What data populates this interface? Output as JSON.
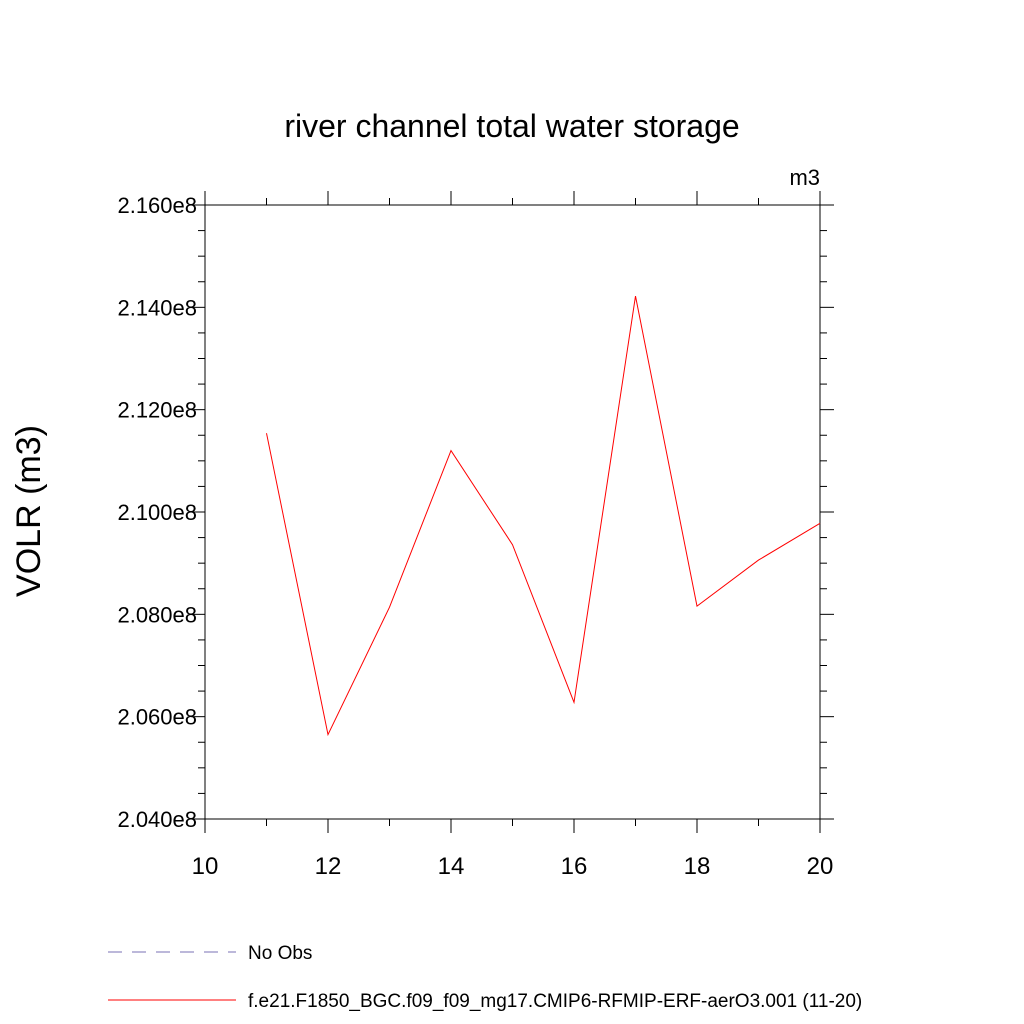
{
  "chart_data": {
    "type": "line",
    "title": "river channel total water storage",
    "units_label": "m3",
    "ylabel": "VOLR  (m3)",
    "xlabel": "",
    "xlim": [
      10,
      20
    ],
    "ylim": [
      204000000,
      216000000
    ],
    "x_ticks": [
      10,
      12,
      14,
      16,
      18,
      20
    ],
    "x_tick_labels": [
      "10",
      "12",
      "14",
      "16",
      "18",
      "20"
    ],
    "y_ticks": [
      204000000,
      206000000,
      208000000,
      210000000,
      212000000,
      214000000,
      216000000
    ],
    "y_tick_labels": [
      "2.040e8",
      "2.060e8",
      "2.080e8",
      "2.100e8",
      "2.120e8",
      "2.140e8",
      "2.160e8"
    ],
    "series": [
      {
        "name": "f.e21.F1850_BGC.f09_f09_mg17.CMIP6-RFMIP-ERF-aerO3.001 (11-20)",
        "color": "#ff0000",
        "dash": "solid",
        "x": [
          11,
          12,
          13,
          14,
          15,
          16,
          17,
          18,
          19,
          20
        ],
        "y": [
          211540000,
          205650000,
          208140000,
          211200000,
          209360000,
          206280000,
          214220000,
          208160000,
          209060000,
          209780000
        ]
      }
    ],
    "legend": [
      {
        "label": "No Obs",
        "color": "#7a70b4",
        "dash": "dashed"
      },
      {
        "label": "f.e21.F1850_BGC.f09_f09_mg17.CMIP6-RFMIP-ERF-aerO3.001 (11-20)",
        "color": "#ff0000",
        "dash": "solid"
      }
    ],
    "legend_position": "bottom",
    "grid": false
  }
}
